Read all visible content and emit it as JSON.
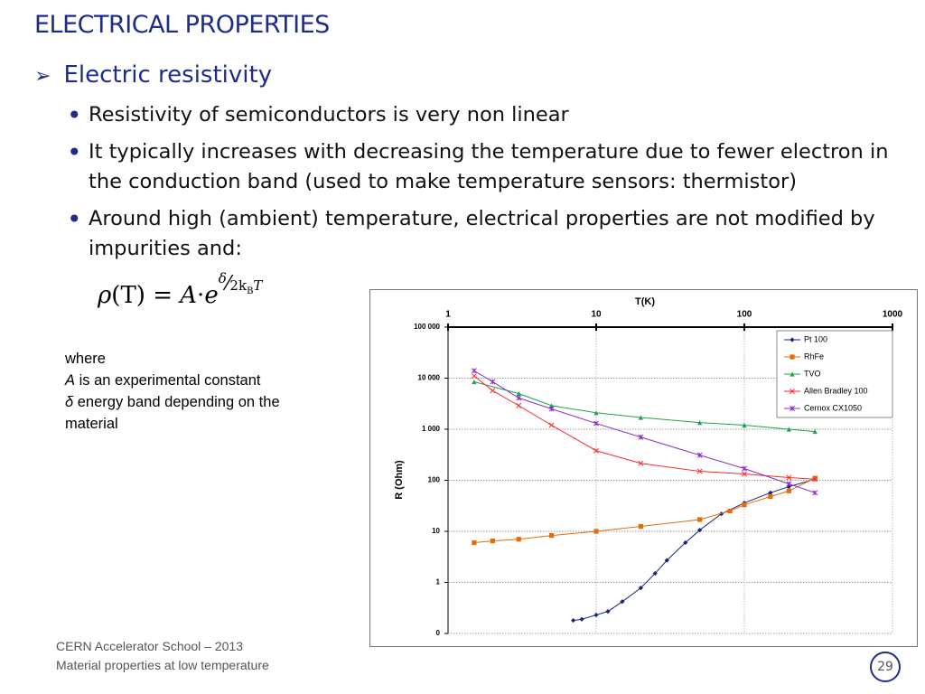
{
  "title": "ELECTRICAL PROPERTIES",
  "heading": "Electric resistivity",
  "bullets": [
    "Resistivity of semiconductors is very non linear",
    "It typically increases with decreasing the temperature due to fewer electron in the conduction band (used to make temperature sensors: thermistor)",
    "Around high (ambient) temperature, electrical properties are not modified by impurities and:"
  ],
  "formula": {
    "lhs": "ρ",
    "arg": "(T)",
    "eq": " = ",
    "a": "A",
    "dot": "·",
    "e": "e",
    "num": "δ",
    "den": "2k",
    "sub": "B",
    "t": "T"
  },
  "where": {
    "intro": "where",
    "lines": [
      {
        "symbol": "A",
        "text": " is an experimental constant"
      },
      {
        "symbol": "δ",
        "text": " energy band depending on the material"
      }
    ]
  },
  "footer": {
    "line1": "CERN Accelerator School – 2013",
    "line2": "Material properties at low temperature",
    "page": "29"
  },
  "chart_data": {
    "type": "line",
    "x_label": "T(K)",
    "y_label": "R (Ohm)",
    "xscale": "log",
    "yscale": "log",
    "grid": true,
    "legend": "upper right",
    "xlim": [
      1,
      1000
    ],
    "xticks": [
      1,
      10,
      100,
      1000
    ],
    "ylim": [
      0.1,
      100000
    ],
    "yticks": [
      {
        "value": 0.1,
        "label": "0"
      },
      1,
      10,
      100,
      {
        "value": 1000,
        "label": "1 000"
      },
      {
        "value": 10000,
        "label": "10 000"
      },
      {
        "value": 100000,
        "label": "100 000"
      }
    ],
    "series": [
      {
        "name": "Pt 100",
        "color": "#1a237e",
        "marker": "diamond",
        "x": [
          7,
          8,
          10,
          12,
          15,
          20,
          25,
          30,
          40,
          50,
          70,
          100,
          150,
          200,
          300
        ],
        "values": [
          0.18,
          0.19,
          0.23,
          0.27,
          0.42,
          0.78,
          1.5,
          2.7,
          6,
          10.6,
          22,
          36,
          57,
          75,
          105
        ]
      },
      {
        "name": "RhFe",
        "color": "#e36c0a",
        "marker": "square",
        "x": [
          1.5,
          2,
          3,
          5,
          10,
          20,
          50,
          80,
          100,
          150,
          200,
          300
        ],
        "values": [
          6,
          6.5,
          7,
          8.3,
          10,
          12.5,
          17,
          25,
          33,
          48,
          62,
          110
        ]
      },
      {
        "name": "TVO",
        "color": "#1fa34a",
        "marker": "triangle",
        "x": [
          1.5,
          3,
          5,
          10,
          20,
          50,
          100,
          200,
          300
        ],
        "values": [
          8500,
          5000,
          2900,
          2100,
          1700,
          1350,
          1200,
          1000,
          900
        ]
      },
      {
        "name": "Allen Bradley 100",
        "color": "#ff2a2a",
        "marker": "cross",
        "x": [
          1.5,
          2,
          3,
          5,
          10,
          20,
          50,
          100,
          200,
          300
        ],
        "values": [
          11000,
          5700,
          2900,
          1200,
          380,
          215,
          150,
          133,
          113,
          105
        ]
      },
      {
        "name": "Cernox CX1050",
        "color": "#8b2fc9",
        "marker": "star",
        "x": [
          1.5,
          2,
          3,
          5,
          10,
          20,
          50,
          100,
          200,
          300
        ],
        "values": [
          14000,
          8500,
          4100,
          2500,
          1300,
          700,
          310,
          170,
          85,
          57
        ]
      }
    ]
  }
}
